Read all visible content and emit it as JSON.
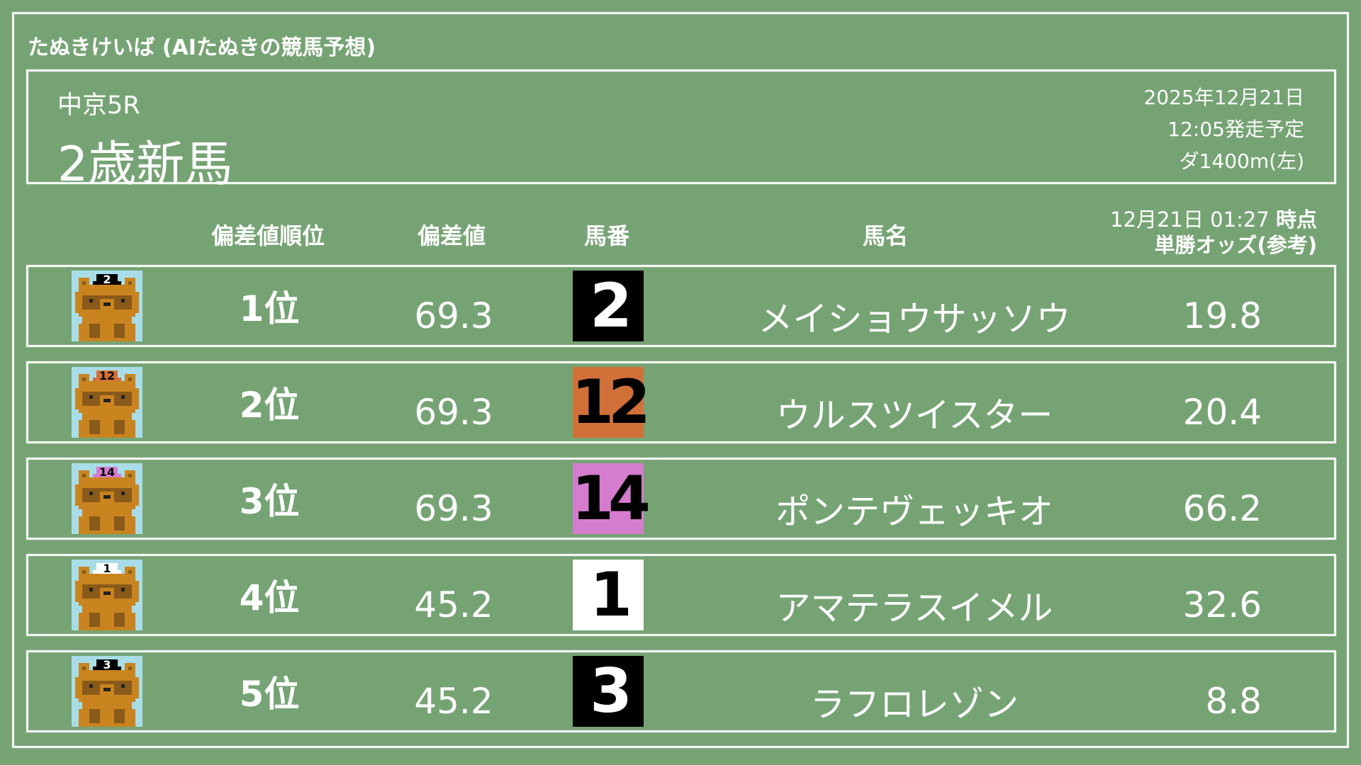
{
  "app_title": "たぬきけいば (AIたぬきの競馬予想)",
  "race": {
    "venue": "中京5R",
    "name": "2歳新馬",
    "date": "2025年12月21日",
    "start_time": "12:05発走予定",
    "course": "ダ1400m(左)"
  },
  "columns": {
    "rank": "偏差値順位",
    "deviation": "偏差値",
    "number": "馬番",
    "name": "馬名",
    "odds_time": "12月21日 01:27",
    "odds_time_suffix": "時点",
    "odds": "単勝オッズ(参考)"
  },
  "rows": [
    {
      "rank": "1位",
      "deviation": "69.3",
      "number": "2",
      "name": "メイショウサッソウ",
      "odds": "19.8",
      "box_color": "#000000",
      "text_color": "#ffffff",
      "icon": "tanuki-icon"
    },
    {
      "rank": "2位",
      "deviation": "69.3",
      "number": "12",
      "name": "ウルスツイスター",
      "odds": "20.4",
      "box_color": "#d2703a",
      "text_color": "#000000",
      "icon": "tanuki-icon"
    },
    {
      "rank": "3位",
      "deviation": "69.3",
      "number": "14",
      "name": "ポンテヴェッキオ",
      "odds": "66.2",
      "box_color": "#d57ccf",
      "text_color": "#000000",
      "icon": "tanuki-icon"
    },
    {
      "rank": "4位",
      "deviation": "45.2",
      "number": "1",
      "name": "アマテラスイメル",
      "odds": "32.6",
      "box_color": "#ffffff",
      "text_color": "#000000",
      "icon": "tanuki-icon"
    },
    {
      "rank": "5位",
      "deviation": "45.2",
      "number": "3",
      "name": "ラフロレゾン",
      "odds": "8.8",
      "box_color": "#000000",
      "text_color": "#ffffff",
      "icon": "tanuki-icon"
    }
  ],
  "colors": {
    "background": "#76a374",
    "chalk": "#ffffff",
    "tanuki_body": "#c9841f",
    "tanuki_dark": "#8a5a1a",
    "icon_sky": "#a8dde8"
  }
}
